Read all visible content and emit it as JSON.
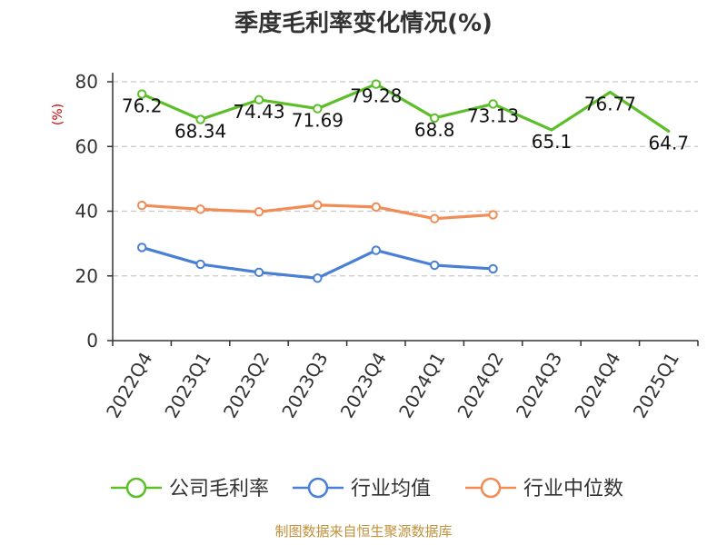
{
  "chart_data": {
    "type": "line",
    "title": "季度毛利率变化情况(%)",
    "ylabel": "(%)",
    "xlabel": "",
    "ylim": [
      0,
      80
    ],
    "yticks": [
      0,
      20,
      40,
      60,
      80
    ],
    "grid": true,
    "legend_position": "bottom",
    "categories": [
      "2022Q4",
      "2023Q1",
      "2023Q2",
      "2023Q3",
      "2023Q4",
      "2024Q1",
      "2024Q2",
      "2024Q3",
      "2024Q4",
      "2025Q1"
    ],
    "series": [
      {
        "name": "公司毛利率",
        "color": "#5cbf2a",
        "values": [
          76.2,
          68.34,
          74.43,
          71.69,
          79.28,
          68.8,
          73.13,
          65.1,
          76.77,
          64.7
        ],
        "labels": [
          "76.2",
          "68.34",
          "74.43",
          "71.69",
          "79.28",
          "68.8",
          "73.13",
          "65.1",
          "76.77",
          "64.7"
        ],
        "marker_indices": [
          0,
          1,
          2,
          3,
          4,
          5,
          6
        ]
      },
      {
        "name": "行业均值",
        "color": "#4a7fd6",
        "values": [
          28.8,
          23.6,
          21.1,
          19.3,
          27.9,
          23.3,
          22.2,
          null,
          null,
          null
        ],
        "marker_indices": [
          0,
          1,
          2,
          3,
          4,
          5,
          6
        ]
      },
      {
        "name": "行业中位数",
        "color": "#f28c55",
        "values": [
          41.8,
          40.6,
          39.8,
          41.9,
          41.3,
          37.7,
          38.9,
          null,
          null,
          null
        ],
        "marker_indices": [
          0,
          1,
          2,
          3,
          4,
          5,
          6
        ]
      }
    ],
    "source": "制图数据来自恒生聚源数据库"
  }
}
